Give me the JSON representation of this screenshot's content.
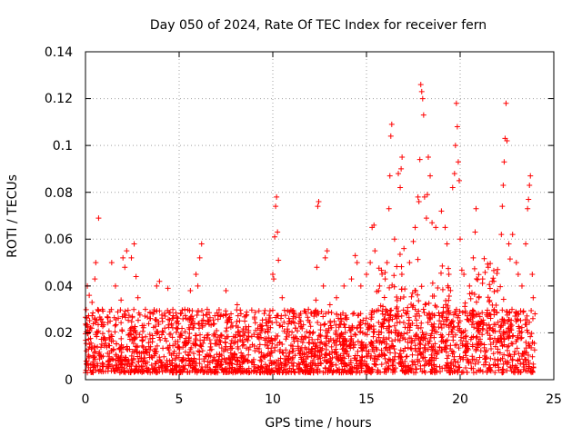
{
  "chart_data": {
    "type": "scatter",
    "title": "Day 050 of 2024, Rate Of TEC Index for receiver fern",
    "xlabel": "GPS time / hours",
    "ylabel": "ROTI / TECUs",
    "xlim": [
      0,
      25
    ],
    "ylim": [
      0,
      0.14
    ],
    "xticks": [
      0,
      5,
      10,
      15,
      20,
      25
    ],
    "yticks": [
      0,
      0.02,
      0.04,
      0.06,
      0.08,
      0.1,
      0.12,
      0.14
    ],
    "xtick_labels": [
      "0",
      "5",
      "10",
      "15",
      "20",
      "25"
    ],
    "ytick_labels": [
      "0",
      "0.02",
      "0.04",
      "0.06",
      "0.08",
      "0.1",
      "0.12",
      "0.14"
    ],
    "grid": true,
    "marker": "+",
    "color": "#ff0000",
    "series": [
      {
        "name": "ROTI",
        "dense_band": {
          "x_range": [
            0.0,
            24.0
          ],
          "typical_y_range": [
            0.003,
            0.03
          ],
          "samples": 2600
        },
        "points": [
          [
            0.1,
            0.04
          ],
          [
            0.2,
            0.036
          ],
          [
            0.35,
            0.033
          ],
          [
            0.5,
            0.043
          ],
          [
            0.55,
            0.05
          ],
          [
            0.7,
            0.069
          ],
          [
            0.9,
            0.03
          ],
          [
            1.3,
            0.029
          ],
          [
            1.4,
            0.05
          ],
          [
            1.6,
            0.04
          ],
          [
            1.9,
            0.034
          ],
          [
            2.0,
            0.052
          ],
          [
            2.1,
            0.048
          ],
          [
            2.2,
            0.055
          ],
          [
            2.45,
            0.052
          ],
          [
            2.6,
            0.058
          ],
          [
            2.7,
            0.044
          ],
          [
            2.8,
            0.035
          ],
          [
            3.2,
            0.03
          ],
          [
            3.6,
            0.028
          ],
          [
            3.8,
            0.04
          ],
          [
            3.95,
            0.042
          ],
          [
            4.4,
            0.039
          ],
          [
            4.9,
            0.025
          ],
          [
            5.3,
            0.03
          ],
          [
            5.6,
            0.038
          ],
          [
            5.9,
            0.045
          ],
          [
            6.0,
            0.04
          ],
          [
            6.1,
            0.052
          ],
          [
            6.2,
            0.058
          ],
          [
            6.5,
            0.03
          ],
          [
            7.2,
            0.027
          ],
          [
            7.5,
            0.038
          ],
          [
            8.1,
            0.032
          ],
          [
            8.5,
            0.025
          ],
          [
            9.2,
            0.022
          ],
          [
            9.8,
            0.025
          ],
          [
            10.0,
            0.045
          ],
          [
            10.05,
            0.043
          ],
          [
            10.1,
            0.061
          ],
          [
            10.15,
            0.074
          ],
          [
            10.2,
            0.078
          ],
          [
            10.25,
            0.063
          ],
          [
            10.3,
            0.051
          ],
          [
            10.5,
            0.035
          ],
          [
            10.9,
            0.025
          ],
          [
            11.2,
            0.022
          ],
          [
            11.5,
            0.025
          ],
          [
            11.9,
            0.03
          ],
          [
            12.3,
            0.034
          ],
          [
            12.35,
            0.048
          ],
          [
            12.4,
            0.074
          ],
          [
            12.45,
            0.076
          ],
          [
            12.7,
            0.04
          ],
          [
            12.8,
            0.052
          ],
          [
            12.9,
            0.055
          ],
          [
            13.05,
            0.032
          ],
          [
            13.4,
            0.035
          ],
          [
            13.8,
            0.04
          ],
          [
            14.2,
            0.043
          ],
          [
            14.4,
            0.053
          ],
          [
            14.5,
            0.05
          ],
          [
            14.7,
            0.04
          ],
          [
            15.0,
            0.045
          ],
          [
            15.2,
            0.05
          ],
          [
            15.3,
            0.065
          ],
          [
            15.4,
            0.066
          ],
          [
            15.45,
            0.055
          ],
          [
            15.7,
            0.04
          ],
          [
            16.0,
            0.043
          ],
          [
            16.1,
            0.05
          ],
          [
            16.2,
            0.073
          ],
          [
            16.25,
            0.087
          ],
          [
            16.3,
            0.104
          ],
          [
            16.35,
            0.109
          ],
          [
            16.5,
            0.06
          ],
          [
            16.7,
            0.088
          ],
          [
            16.8,
            0.082
          ],
          [
            16.85,
            0.09
          ],
          [
            16.9,
            0.095
          ],
          [
            17.0,
            0.056
          ],
          [
            17.3,
            0.05
          ],
          [
            17.5,
            0.059
          ],
          [
            17.6,
            0.065
          ],
          [
            17.75,
            0.078
          ],
          [
            17.8,
            0.076
          ],
          [
            17.85,
            0.094
          ],
          [
            17.9,
            0.126
          ],
          [
            17.95,
            0.123
          ],
          [
            18.0,
            0.12
          ],
          [
            18.05,
            0.113
          ],
          [
            18.1,
            0.078
          ],
          [
            18.2,
            0.069
          ],
          [
            18.25,
            0.079
          ],
          [
            18.3,
            0.095
          ],
          [
            18.4,
            0.087
          ],
          [
            18.5,
            0.067
          ],
          [
            18.7,
            0.065
          ],
          [
            19.0,
            0.072
          ],
          [
            19.2,
            0.065
          ],
          [
            19.3,
            0.058
          ],
          [
            19.4,
            0.045
          ],
          [
            19.6,
            0.082
          ],
          [
            19.7,
            0.088
          ],
          [
            19.75,
            0.1
          ],
          [
            19.8,
            0.118
          ],
          [
            19.85,
            0.108
          ],
          [
            19.9,
            0.093
          ],
          [
            19.95,
            0.085
          ],
          [
            20.0,
            0.06
          ],
          [
            20.2,
            0.045
          ],
          [
            20.5,
            0.04
          ],
          [
            20.7,
            0.052
          ],
          [
            20.8,
            0.063
          ],
          [
            20.85,
            0.073
          ],
          [
            21.0,
            0.035
          ],
          [
            21.2,
            0.043
          ],
          [
            21.5,
            0.048
          ],
          [
            21.8,
            0.042
          ],
          [
            22.0,
            0.047
          ],
          [
            22.2,
            0.062
          ],
          [
            22.25,
            0.074
          ],
          [
            22.3,
            0.083
          ],
          [
            22.35,
            0.093
          ],
          [
            22.4,
            0.103
          ],
          [
            22.45,
            0.118
          ],
          [
            22.5,
            0.102
          ],
          [
            22.6,
            0.058
          ],
          [
            22.8,
            0.062
          ],
          [
            23.0,
            0.05
          ],
          [
            23.1,
            0.045
          ],
          [
            23.3,
            0.04
          ],
          [
            23.5,
            0.058
          ],
          [
            23.6,
            0.073
          ],
          [
            23.65,
            0.077
          ],
          [
            23.7,
            0.083
          ],
          [
            23.75,
            0.087
          ],
          [
            23.85,
            0.045
          ],
          [
            23.9,
            0.035
          ]
        ]
      }
    ]
  }
}
